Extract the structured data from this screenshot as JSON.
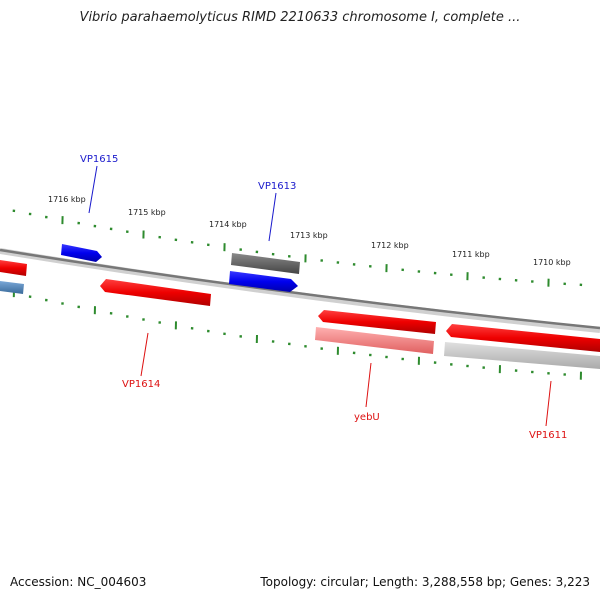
{
  "title": "Vibrio parahaemolyticus RIMD 2210633 chromosome I, complete ...",
  "footer": {
    "accession": "Accession: NC_004603",
    "summary": "Topology: circular; Length: 3,288,558 bp; Genes: 3,223"
  },
  "colors": {
    "forward_gene": "#0000ee",
    "reverse_gene": "#ee0000",
    "forward_label": "#1a1acc",
    "reverse_label": "#dd1111",
    "backbone": "#888888",
    "ticks": "#2e8b2e",
    "pseudo_gene": "#666666",
    "light_reverse": "#f08080",
    "light_gray": "#c8c8c8",
    "steel_blue": "#4a7fb5"
  },
  "scale_labels": [
    "1716 kbp",
    "1715 kbp",
    "1714 kbp",
    "1713 kbp",
    "1712 kbp",
    "1711 kbp",
    "1710 kbp"
  ],
  "gene_labels": [
    {
      "name": "VP1615",
      "strand": "forward"
    },
    {
      "name": "VP1613",
      "strand": "forward"
    },
    {
      "name": "VP1614",
      "strand": "reverse"
    },
    {
      "name": "yebU",
      "strand": "reverse"
    },
    {
      "name": "VP1611",
      "strand": "reverse"
    }
  ]
}
